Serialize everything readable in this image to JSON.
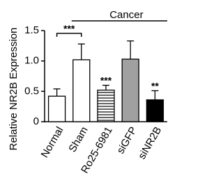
{
  "chart_data": {
    "type": "bar",
    "y_label": "Relative NR2B Expression",
    "categories": [
      "Normal",
      "Sham",
      "Ro25-6981",
      "siGFP",
      "siNR2B"
    ],
    "values": [
      0.42,
      1.02,
      0.52,
      1.03,
      0.36
    ],
    "errors": [
      0.12,
      0.26,
      0.08,
      0.3,
      0.15
    ],
    "colors": [
      "#ffffff",
      "#ffffff",
      "#ffffff",
      "#a0a0a0",
      "#000000"
    ],
    "hatched": [
      false,
      false,
      true,
      false,
      false
    ],
    "significance": [
      null,
      null,
      "***",
      null,
      "**"
    ],
    "comparisons": [
      {
        "label": "***",
        "from": "Normal",
        "to": "Sham"
      }
    ],
    "groups": [
      {
        "label": "Cancer",
        "from": "Sham",
        "to": "siNR2B"
      }
    ],
    "ylim": [
      0,
      1.5
    ],
    "yticks": [
      0,
      0.5,
      {
        "value": 1,
        "label": "1.0"
      },
      1.5
    ]
  }
}
